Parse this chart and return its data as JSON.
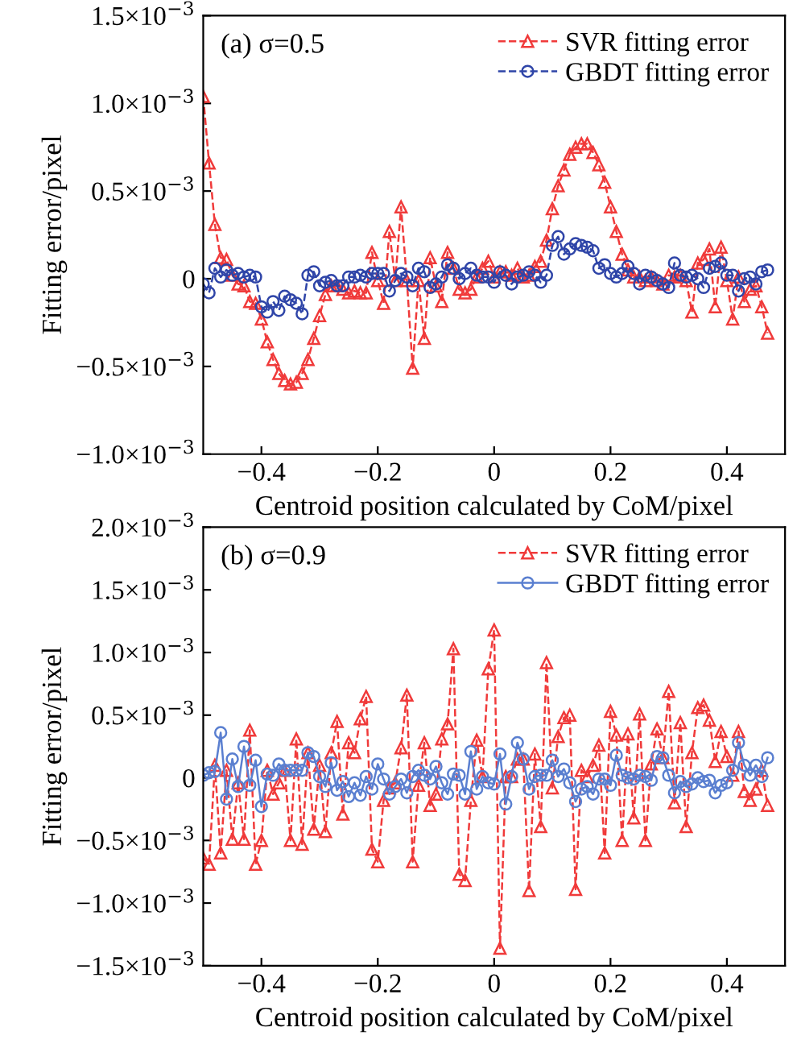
{
  "chart_data": [
    {
      "type": "line",
      "title": "(a) σ=0.5",
      "xlabel": "Centroid position calculated by CoM/pixel",
      "ylabel": "Fitting error/pixel",
      "xlim": [
        -0.5,
        0.5
      ],
      "xticks": [
        -0.4,
        -0.2,
        0,
        0.2,
        0.4
      ],
      "ylim": [
        -0.001,
        0.0015
      ],
      "yticks": [
        {
          "value": -0.001,
          "label": "−1.0×10$^{−3}$"
        },
        {
          "value": -0.0005,
          "label": "−0.5×10$^{−3}$"
        },
        0,
        {
          "value": 0.0005,
          "label": "0.5×10$^{−3}$"
        },
        {
          "value": 0.001,
          "label": "1.0×10$^{−3}$"
        },
        {
          "value": 0.0015,
          "label": "1.5×10$^{−3}$"
        }
      ],
      "legend": "top right",
      "grid": false,
      "x": [
        -0.5,
        -0.49,
        -0.48,
        -0.47,
        -0.46,
        -0.45,
        -0.44,
        -0.43,
        -0.42,
        -0.41,
        -0.4,
        -0.39,
        -0.38,
        -0.37,
        -0.36,
        -0.35,
        -0.34,
        -0.33,
        -0.32,
        -0.31,
        -0.3,
        -0.29,
        -0.28,
        -0.27,
        -0.26,
        -0.25,
        -0.24,
        -0.23,
        -0.22,
        -0.21,
        -0.2,
        -0.19,
        -0.18,
        -0.17,
        -0.16,
        -0.15,
        -0.14,
        -0.13,
        -0.12,
        -0.11,
        -0.1,
        -0.09,
        -0.08,
        -0.07,
        -0.06,
        -0.05,
        -0.04,
        -0.03,
        -0.02,
        -0.01,
        0,
        0.01,
        0.02,
        0.03,
        0.04,
        0.05,
        0.06,
        0.07,
        0.08,
        0.09,
        0.1,
        0.11,
        0.12,
        0.13,
        0.14,
        0.15,
        0.16,
        0.17,
        0.18,
        0.19,
        0.2,
        0.21,
        0.22,
        0.23,
        0.24,
        0.25,
        0.26,
        0.27,
        0.28,
        0.29,
        0.3,
        0.31,
        0.32,
        0.33,
        0.34,
        0.35,
        0.36,
        0.37,
        0.38,
        0.39,
        0.4,
        0.41,
        0.42,
        0.43,
        0.44,
        0.45,
        0.46,
        0.47
      ],
      "series": [
        {
          "name": "SVR fitting error",
          "color": "#f03a3a",
          "marker": "triangle",
          "line_style": "dashed",
          "values": [
            0.00104,
            0.00066,
            0.00031,
            0.00012,
            0.00011,
            2e-05,
            -3e-05,
            -4e-05,
            -0.00013,
            -0.00014,
            -0.00023,
            -0.00036,
            -0.00046,
            -0.00054,
            -0.00058,
            -0.0006,
            -0.00059,
            -0.00054,
            -0.00046,
            -0.00034,
            -0.00021,
            -9e-05,
            -4e-05,
            -4e-05,
            -6e-05,
            -8e-05,
            -7e-05,
            -8e-05,
            -8e-05,
            0.00015,
            -1e-05,
            -0.00014,
            0.00027,
            -1e-05,
            0.00041,
            -1e-05,
            -0.00051,
            -1e-05,
            -0.00034,
            0.00012,
            -4e-05,
            -0.00013,
            0.00015,
            6e-05,
            -6e-05,
            -8e-05,
            -6e-05,
            1e-05,
            6e-05,
            0.0001,
            1e-05,
            4e-05,
            4e-05,
            2e-05,
            6e-05,
            1e-05,
            2e-05,
            7e-05,
            0.0001,
            0.00022,
            0.0004,
            0.00053,
            0.00062,
            0.00071,
            0.00075,
            0.00077,
            0.00077,
            0.00072,
            0.00065,
            0.00055,
            0.00041,
            0.00027,
            0.00014,
            5e-05,
            1e-05,
            1e-05,
            -1e-05,
            1e-05,
            -1e-05,
            -3e-05,
            2e-05,
            1e-05,
            2e-05,
            -1e-05,
            -0.00019,
            9e-05,
            0.00011,
            0.00017,
            -0.00016,
            0.00018,
            -1e-05,
            -0.00023,
            1e-05,
            -0.00013,
            -6e-05,
            -4e-05,
            -0.00016,
            -0.00031
          ]
        },
        {
          "name": "GBDT fitting error",
          "color": "#2f45a8",
          "marker": "circle",
          "line_style": "dashed",
          "values": [
            -3e-05,
            -8e-05,
            6e-05,
            1e-05,
            5e-05,
            2e-05,
            3e-05,
            1e-05,
            2e-05,
            1e-05,
            -0.00016,
            -0.00019,
            -0.00013,
            -0.00018,
            -0.0001,
            -0.00012,
            -0.00014,
            -0.0002,
            2e-05,
            4e-05,
            -4e-05,
            -2e-05,
            -1e-05,
            -4e-05,
            -4e-05,
            1e-05,
            1e-05,
            2e-05,
            1e-05,
            3e-05,
            3e-05,
            3e-05,
            -7e-05,
            -1e-05,
            3e-05,
            1e-05,
            -4e-05,
            6e-05,
            4e-05,
            -5e-05,
            -3e-05,
            1e-05,
            8e-05,
            6e-05,
            0.0,
            3e-05,
            6e-05,
            2e-05,
            1e-05,
            1e-05,
            -2e-05,
            4e-05,
            2e-05,
            -3e-05,
            1e-05,
            2e-05,
            4e-05,
            2e-05,
            -2e-05,
            2e-05,
            0.00019,
            0.00024,
            0.00014,
            0.00017,
            0.0002,
            0.00019,
            0.00018,
            0.00016,
            6e-05,
            8e-05,
            3e-05,
            1e-05,
            3e-05,
            7e-05,
            3e-05,
            -3e-05,
            2e-05,
            1e-05,
            -1e-05,
            -3e-05,
            -5e-05,
            9e-05,
            2e-05,
            1e-05,
            2e-05,
            0.0,
            -5e-05,
            6e-05,
            7e-05,
            9e-05,
            2e-05,
            2e-05,
            -7e-05,
            0.0,
            1e-05,
            -3e-05,
            4e-05,
            5e-05
          ]
        }
      ]
    },
    {
      "type": "line",
      "title": "(b) σ=0.9",
      "xlabel": "Centroid position calculated by CoM/pixel",
      "ylabel": "Fitting error/pixel",
      "xlim": [
        -0.5,
        0.5
      ],
      "xticks": [
        -0.4,
        -0.2,
        0,
        0.2,
        0.4
      ],
      "ylim": [
        -0.0015,
        0.002
      ],
      "yticks": [
        {
          "value": -0.0015,
          "label": "−1.5×10$^{−3}$"
        },
        {
          "value": -0.001,
          "label": "−1.0×10$^{−3}$"
        },
        {
          "value": -0.0005,
          "label": "−0.5×10$^{−3}$"
        },
        0,
        {
          "value": 0.0005,
          "label": "0.5×10$^{−3}$"
        },
        {
          "value": 0.001,
          "label": "1.0×10$^{−3}$"
        },
        {
          "value": 0.0015,
          "label": "1.5×10$^{−3}$"
        },
        {
          "value": 0.002,
          "label": "2.0×10$^{−3}$"
        }
      ],
      "legend": "top right",
      "grid": false,
      "x": [
        -0.5,
        -0.49,
        -0.48,
        -0.47,
        -0.46,
        -0.45,
        -0.44,
        -0.43,
        -0.42,
        -0.41,
        -0.4,
        -0.39,
        -0.38,
        -0.37,
        -0.36,
        -0.35,
        -0.34,
        -0.33,
        -0.32,
        -0.31,
        -0.3,
        -0.29,
        -0.28,
        -0.27,
        -0.26,
        -0.25,
        -0.24,
        -0.23,
        -0.22,
        -0.21,
        -0.2,
        -0.19,
        -0.18,
        -0.17,
        -0.16,
        -0.15,
        -0.14,
        -0.13,
        -0.12,
        -0.11,
        -0.1,
        -0.09,
        -0.08,
        -0.07,
        -0.06,
        -0.05,
        -0.04,
        -0.03,
        -0.02,
        -0.01,
        0,
        0.01,
        0.02,
        0.03,
        0.04,
        0.05,
        0.06,
        0.07,
        0.08,
        0.09,
        0.1,
        0.11,
        0.12,
        0.13,
        0.14,
        0.15,
        0.16,
        0.17,
        0.18,
        0.19,
        0.2,
        0.21,
        0.22,
        0.23,
        0.24,
        0.25,
        0.26,
        0.27,
        0.28,
        0.29,
        0.3,
        0.31,
        0.32,
        0.33,
        0.34,
        0.35,
        0.36,
        0.37,
        0.38,
        0.39,
        0.4,
        0.41,
        0.42,
        0.43,
        0.44,
        0.45,
        0.46,
        0.47
      ],
      "series": [
        {
          "name": "SVR fitting error",
          "color": "#f03a3a",
          "marker": "triangle",
          "line_style": "dashed",
          "values": [
            -0.00064,
            -0.00069,
            0.0001,
            -0.0006,
            6e-05,
            -0.00049,
            -4e-05,
            -0.00049,
            0.00038,
            -0.00069,
            -0.0005,
            6e-05,
            -0.00013,
            -4e-05,
            6e-05,
            -0.0005,
            0.00031,
            -0.00053,
            0.0002,
            -0.00041,
            0.0001,
            -0.00043,
            0.0002,
            0.00045,
            -0.00029,
            0.00028,
            0.0002,
            0.00047,
            0.00065,
            -0.00057,
            -0.00067,
            -0.00018,
            -8e-05,
            -4e-05,
            0.00024,
            0.00066,
            -0.00067,
            -6e-05,
            0.00028,
            -0.00022,
            -0.00013,
            0.00031,
            0.00043,
            0.00103,
            -0.00077,
            -0.00082,
            -0.00018,
            0.0003,
            1e-05,
            0.00087,
            0.00118,
            -0.00136,
            1e-05,
            1e-05,
            0.00015,
            0.00015,
            -0.0009,
            0.00019,
            -0.00039,
            0.00092,
            -8e-05,
            0.00033,
            0.00048,
            0.0005,
            -0.00089,
            6e-05,
            1e-05,
            0.0001,
            0.00026,
            -0.0006,
            0.00053,
            0.00034,
            -0.0005,
            0.00035,
            -0.00032,
            0.00051,
            -0.0005,
            0.00011,
            0.00039,
            0.00016,
            0.00069,
            -0.0002,
            0.00044,
            -0.00039,
            0.0002,
            0.00056,
            0.00058,
            0.00046,
            0.00013,
            0.00037,
            0.00017,
            2e-05,
            0.00037,
            -0.00011,
            -0.00018,
            -9e-05,
            6e-05,
            -0.00022
          ]
        },
        {
          "name": "GBDT fitting error",
          "color": "#5a7fd0",
          "marker": "circle",
          "line_style": "solid",
          "values": [
            2e-05,
            4e-05,
            5e-05,
            0.00036,
            -0.00017,
            0.00015,
            -7e-05,
            0.00025,
            -6e-05,
            0.00014,
            -0.00023,
            3e-05,
            2e-05,
            0.00011,
            6e-05,
            6e-05,
            6e-05,
            6e-05,
            0.0002,
            0.00017,
            1e-05,
            -7e-05,
            0.00012,
            -0.0001,
            -3e-05,
            -0.00015,
            -4e-05,
            -0.00014,
            1e-05,
            -9e-05,
            0.00011,
            -1e-05,
            -0.00013,
            -7e-05,
            -1e-05,
            -0.00012,
            1e-05,
            6e-05,
            2e-05,
            -1e-05,
            9e-05,
            -4e-05,
            -0.00013,
            3e-05,
            2e-05,
            -0.00013,
            0.00021,
            -9e-05,
            1e-05,
            -4e-05,
            -5e-05,
            0.00019,
            -0.00021,
            1e-05,
            0.00028,
            0.00015,
            -9e-05,
            1e-05,
            2e-05,
            2e-05,
            0.00014,
            1e-05,
            7e-05,
            -4e-05,
            -0.00019,
            -9e-05,
            -7e-05,
            -0.00013,
            -1e-05,
            -1e-05,
            -6e-05,
            0.00018,
            2e-05,
            0.0,
            -1e-05,
            2e-05,
            1e-05,
            -2e-05,
            0.00017,
            0.00016,
            2e-05,
            -0.00012,
            -3e-05,
            -7e-05,
            -5e-05,
            0.0,
            -3e-05,
            -2e-05,
            -0.00012,
            -6e-05,
            -4e-05,
            6e-05,
            0.00028,
            0.0001,
            2e-05,
            0.0001,
            1e-05,
            0.00016
          ]
        }
      ]
    }
  ]
}
